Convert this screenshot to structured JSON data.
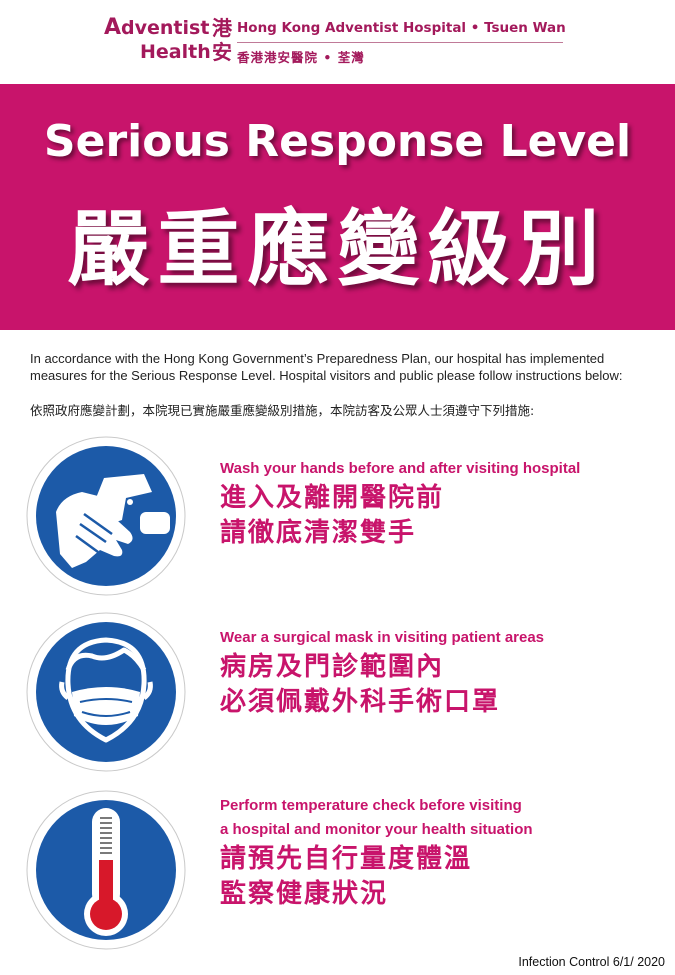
{
  "logo": {
    "brand_a": "A",
    "brand_rest": "dventist",
    "brand_line2": "Health",
    "brand_han": "港安",
    "hospital_en": "Hong Kong Adventist Hospital • Tsuen Wan",
    "hospital_zh": "香港港安醫院 • 荃灣"
  },
  "banner": {
    "title_en": "Serious Response Level",
    "title_zh": "嚴重應變級別",
    "color": "#c8146b"
  },
  "intro": {
    "text_en": "In accordance with the Hong Kong Government’s Preparedness Plan, our hospital has implemented measures for the Serious Response Level. Hospital visitors and public please follow instructions below:",
    "text_zh": "依照政府應變計劃，本院現已實施嚴重應變級別措施，本院訪客及公眾人士須遵守下列措施:"
  },
  "items": [
    {
      "icon": "hand-washing-icon",
      "en_lines": [
        "Wash your hands before and after visiting hospital"
      ],
      "zh_lines": [
        "進入及離開醫院前",
        "請徹底清潔雙手"
      ]
    },
    {
      "icon": "face-mask-icon",
      "en_lines": [
        "Wear a surgical mask in visiting patient areas"
      ],
      "zh_lines": [
        "病房及門診範圍內",
        "必須佩戴外科手術口罩"
      ]
    },
    {
      "icon": "thermometer-icon",
      "en_lines": [
        "Perform temperature check before visiting",
        "a hospital and monitor your health situation"
      ],
      "zh_lines": [
        "請預先自行量度體溫",
        "監察健康狀況"
      ]
    }
  ],
  "footer": {
    "text": "Infection Control  6/1/ 2020"
  },
  "colors": {
    "accent": "#c8146b",
    "icon_blue": "#1c5aa8",
    "brand": "#a3195b"
  }
}
